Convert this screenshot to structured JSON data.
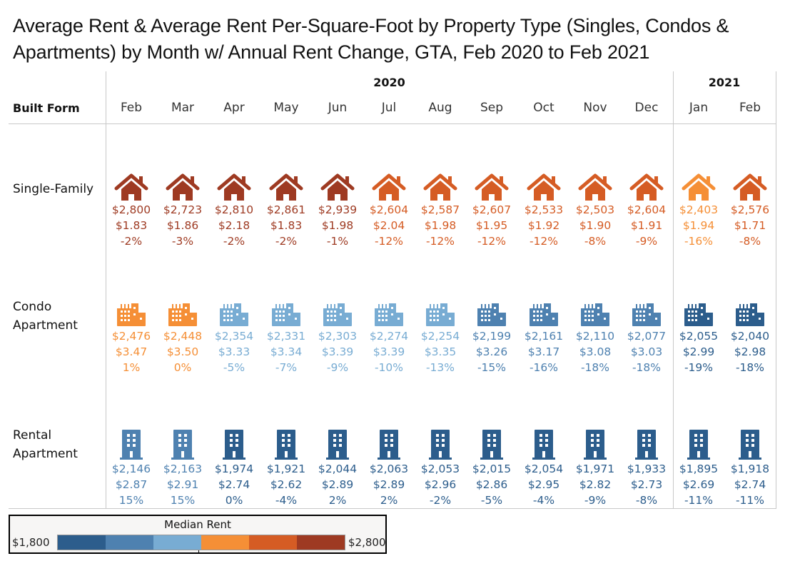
{
  "title": "Average Rent & Average Rent Per-Square-Foot by Property Type (Singles, Condos & Apartments) by Month w/ Annual Rent Change, GTA, Feb 2020 to Feb 2021",
  "header": {
    "row_dimension_label": "Built Form",
    "years": [
      {
        "label": "2020",
        "months": [
          "Feb",
          "Mar",
          "Apr",
          "May",
          "Jun",
          "Jul",
          "Aug",
          "Sep",
          "Oct",
          "Nov",
          "Dec"
        ]
      },
      {
        "label": "2021",
        "months": [
          "Jan",
          "Feb"
        ]
      }
    ]
  },
  "legend": {
    "title": "Median Rent",
    "min_label": "$1,800",
    "max_label": "$2,800",
    "colors": [
      "#2c5d8c",
      "#4e81b0",
      "#78acd3",
      "#f58f36",
      "#d55c24",
      "#9e3a22"
    ]
  },
  "chart_data": {
    "type": "table",
    "title": "Average Rent & Average Rent Per-Square-Foot by Property Type (Singles, Condos & Apartments) by Month w/ Annual Rent Change, GTA, Feb 2020 to Feb 2021",
    "columns": [
      "Feb 2020",
      "Mar 2020",
      "Apr 2020",
      "May 2020",
      "Jun 2020",
      "Jul 2020",
      "Aug 2020",
      "Sep 2020",
      "Oct 2020",
      "Nov 2020",
      "Dec 2020",
      "Jan 2021",
      "Feb 2021"
    ],
    "color_scale": {
      "label": "Median Rent",
      "range": [
        1800,
        2800
      ]
    },
    "rows": [
      {
        "name": "Single-Family",
        "label_lines": [
          "Single-Family"
        ],
        "icon": "house-icon",
        "avg_rent": [
          "$2,800",
          "$2,723",
          "$2,810",
          "$2,861",
          "$2,939",
          "$2,604",
          "$2,587",
          "$2,607",
          "$2,533",
          "$2,503",
          "$2,604",
          "$2,403",
          "$2,576"
        ],
        "rent_psf": [
          "$1.83",
          "$1.86",
          "$2.18",
          "$1.83",
          "$1.98",
          "$2.04",
          "$1.98",
          "$1.95",
          "$1.92",
          "$1.90",
          "$1.91",
          "$1.94",
          "$1.71"
        ],
        "annual_change": [
          "-2%",
          "-3%",
          "-2%",
          "-2%",
          "-1%",
          "-12%",
          "-12%",
          "-12%",
          "-12%",
          "-8%",
          "-9%",
          "-16%",
          "-8%"
        ],
        "color_bin": [
          5,
          5,
          5,
          5,
          5,
          4,
          4,
          4,
          4,
          4,
          4,
          3,
          4
        ]
      },
      {
        "name": "Condo Apartment",
        "label_lines": [
          "Condo",
          "Apartment"
        ],
        "icon": "condo-building-icon",
        "avg_rent": [
          "$2,476",
          "$2,448",
          "$2,354",
          "$2,331",
          "$2,303",
          "$2,274",
          "$2,254",
          "$2,199",
          "$2,161",
          "$2,110",
          "$2,077",
          "$2,055",
          "$2,040"
        ],
        "rent_psf": [
          "$3.47",
          "$3.50",
          "$3.33",
          "$3.34",
          "$3.39",
          "$3.39",
          "$3.35",
          "$3.26",
          "$3.17",
          "$3.08",
          "$3.03",
          "$2.99",
          "$2.98"
        ],
        "annual_change": [
          "1%",
          "0%",
          "-5%",
          "-7%",
          "-9%",
          "-10%",
          "-13%",
          "-15%",
          "-16%",
          "-18%",
          "-18%",
          "-19%",
          "-18%"
        ],
        "color_bin": [
          3,
          3,
          2,
          2,
          2,
          2,
          2,
          1,
          1,
          1,
          1,
          0,
          0
        ]
      },
      {
        "name": "Rental Apartment",
        "label_lines": [
          "Rental",
          "Apartment"
        ],
        "icon": "apartment-building-icon",
        "avg_rent": [
          "$2,146",
          "$2,163",
          "$1,974",
          "$1,921",
          "$2,044",
          "$2,063",
          "$2,053",
          "$2,015",
          "$2,054",
          "$1,971",
          "$1,933",
          "$1,895",
          "$1,918"
        ],
        "rent_psf": [
          "$2.87",
          "$2.91",
          "$2.74",
          "$2.62",
          "$2.89",
          "$2.89",
          "$2.96",
          "$2.86",
          "$2.95",
          "$2.82",
          "$2.73",
          "$2.69",
          "$2.74"
        ],
        "annual_change": [
          "15%",
          "15%",
          "0%",
          "-4%",
          "2%",
          "2%",
          "-2%",
          "-5%",
          "-4%",
          "-9%",
          "-8%",
          "-11%",
          "-11%"
        ],
        "color_bin": [
          1,
          1,
          0,
          0,
          0,
          0,
          0,
          0,
          0,
          0,
          0,
          0,
          0
        ]
      }
    ]
  }
}
